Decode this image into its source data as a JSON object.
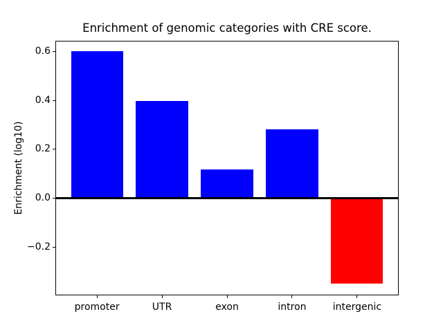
{
  "chart_data": {
    "type": "bar",
    "title": "Enrichment of genomic categories with CRE score.",
    "ylabel": "Enrichment (log10)",
    "xlabel": "",
    "categories": [
      "promoter",
      "UTR",
      "exon",
      "intron",
      "intergenic"
    ],
    "values": [
      0.6,
      0.395,
      0.115,
      0.28,
      -0.35
    ],
    "bar_colors": [
      "#0000ff",
      "#0000ff",
      "#0000ff",
      "#0000ff",
      "#ff0000"
    ],
    "positive_color": "#0000ff",
    "negative_color": "#ff0000",
    "ylim": [
      -0.398,
      0.642
    ],
    "xlim": [
      -0.64,
      4.64
    ],
    "bar_width": 0.8,
    "yticks": [
      0.6,
      0.4,
      0.2,
      0.0,
      -0.2
    ],
    "ytick_labels": [
      "0.6",
      "0.4",
      "0.2",
      "0.0",
      "−0.2"
    ],
    "zero_line": true,
    "grid": false,
    "spine_color": "#000000",
    "background_color": "#ffffff"
  }
}
